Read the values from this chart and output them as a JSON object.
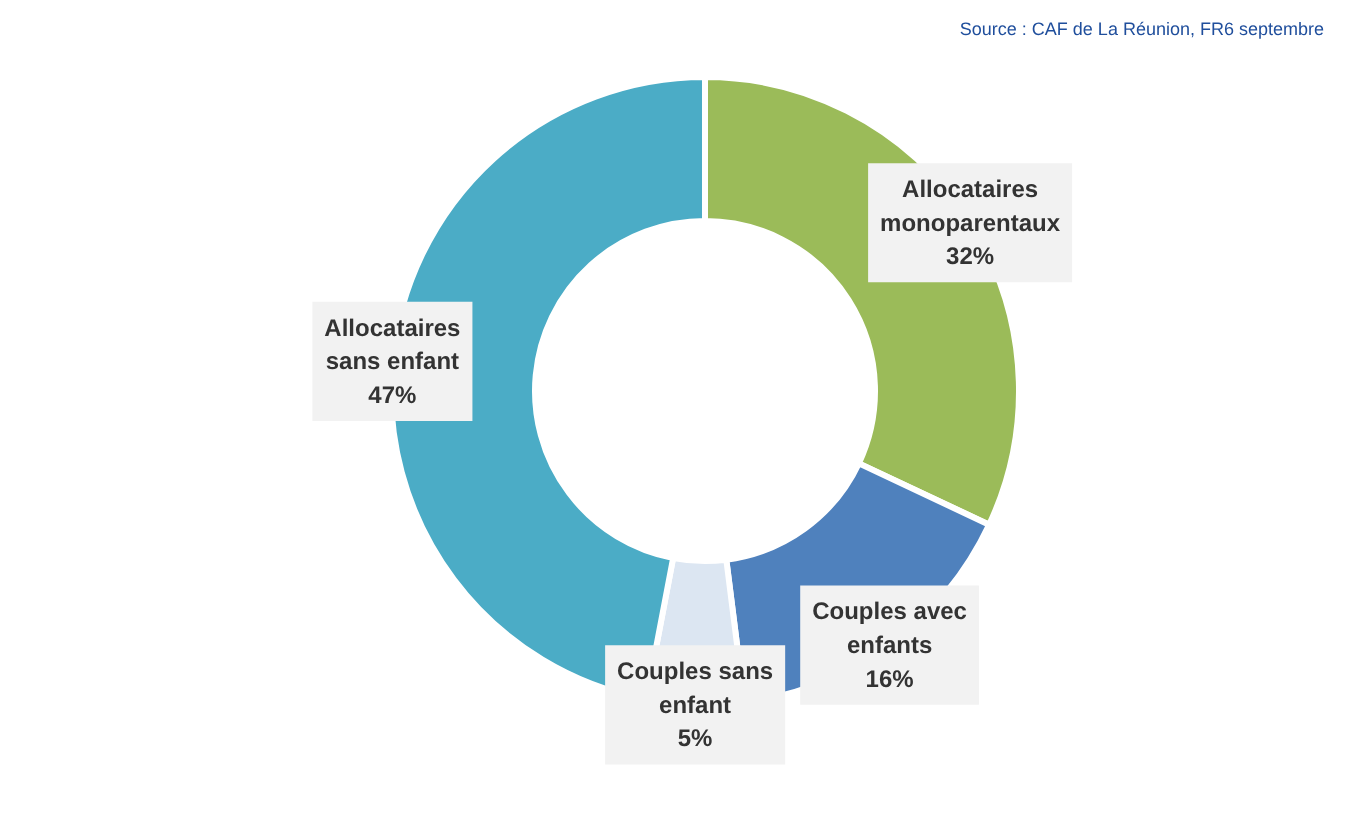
{
  "chart_data": {
    "type": "donut",
    "categories": [
      "Allocataires monoparentaux",
      "Couples avec enfants",
      "Couples sans enfant",
      "Allocataires sans enfant"
    ],
    "values": [
      32,
      16,
      5,
      47
    ],
    "value_labels": [
      "32%",
      "16%",
      "5%",
      "47%"
    ],
    "colors": [
      "#9bbb59",
      "#4f81bd",
      "#dce6f2",
      "#4bacc6"
    ],
    "annotations": [
      "Source : CAF de La Réunion, FR6  septembre"
    ]
  }
}
